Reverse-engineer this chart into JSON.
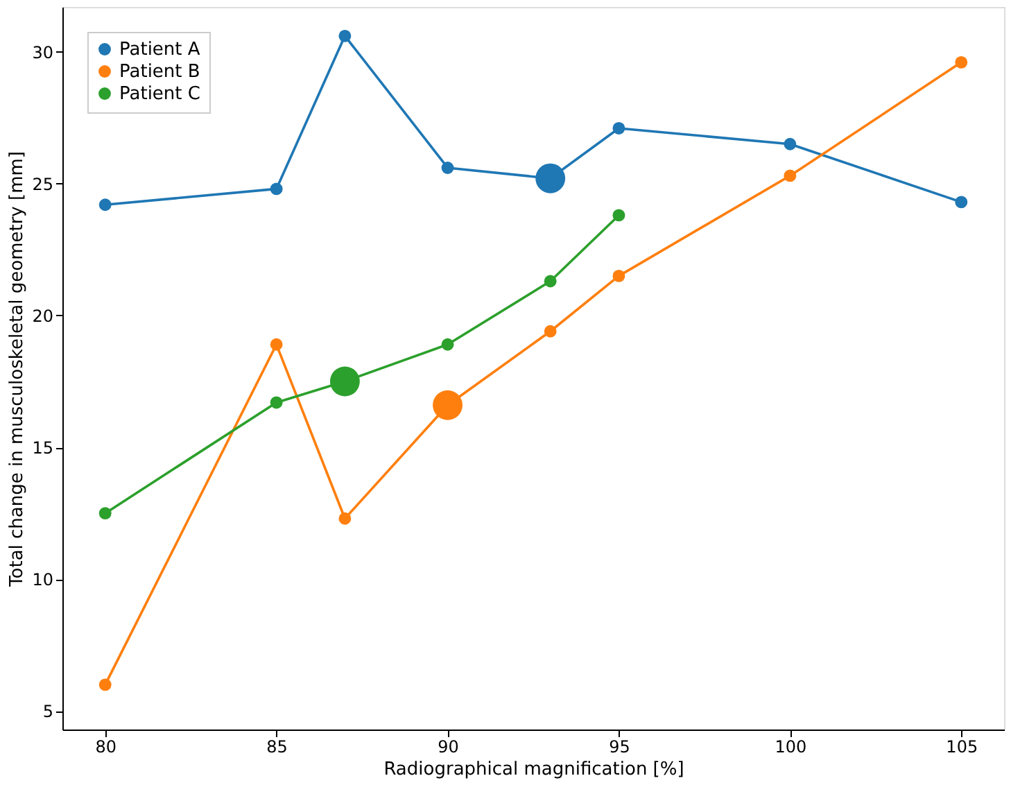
{
  "chart_data": {
    "type": "line",
    "xlabel": "Radiographical magnification [%]",
    "ylabel": "Total change in musculoskeletal geometry [mm]",
    "x": [
      80,
      85,
      87,
      90,
      93,
      95,
      100,
      105
    ],
    "series": [
      {
        "name": "Patient A",
        "color": "#1f77b4",
        "values": [
          24.2,
          24.8,
          30.6,
          25.6,
          25.2,
          27.1,
          26.5,
          24.3
        ]
      },
      {
        "name": "Patient B",
        "color": "#ff7f0e",
        "values": [
          6.0,
          18.9,
          12.3,
          16.6,
          19.4,
          21.5,
          25.3,
          29.6
        ]
      },
      {
        "name": "Patient C",
        "color": "#2ca02c",
        "values": [
          12.5,
          16.7,
          17.5,
          18.9,
          21.3,
          23.8,
          null,
          null
        ]
      },
      {
        "type": "scatter",
        "color": "#1f77b4",
        "x": [
          93
        ],
        "values": [
          25.2
        ]
      },
      {
        "type": "scatter",
        "color": "#ff7f0e",
        "x": [
          90
        ],
        "values": [
          16.6
        ]
      },
      {
        "type": "scatter",
        "color": "#2ca02c",
        "x": [
          87
        ],
        "values": [
          17.5
        ]
      }
    ],
    "xlim": [
      78.75,
      106.25
    ],
    "xticks": [
      80,
      85,
      90,
      95,
      100,
      105
    ],
    "ylim": [
      4.3,
      31.7
    ],
    "yticks": [
      5,
      10,
      15,
      20,
      25,
      30
    ],
    "grid": false,
    "legend": "top left",
    "marker": "circle",
    "line_style": "solid"
  }
}
